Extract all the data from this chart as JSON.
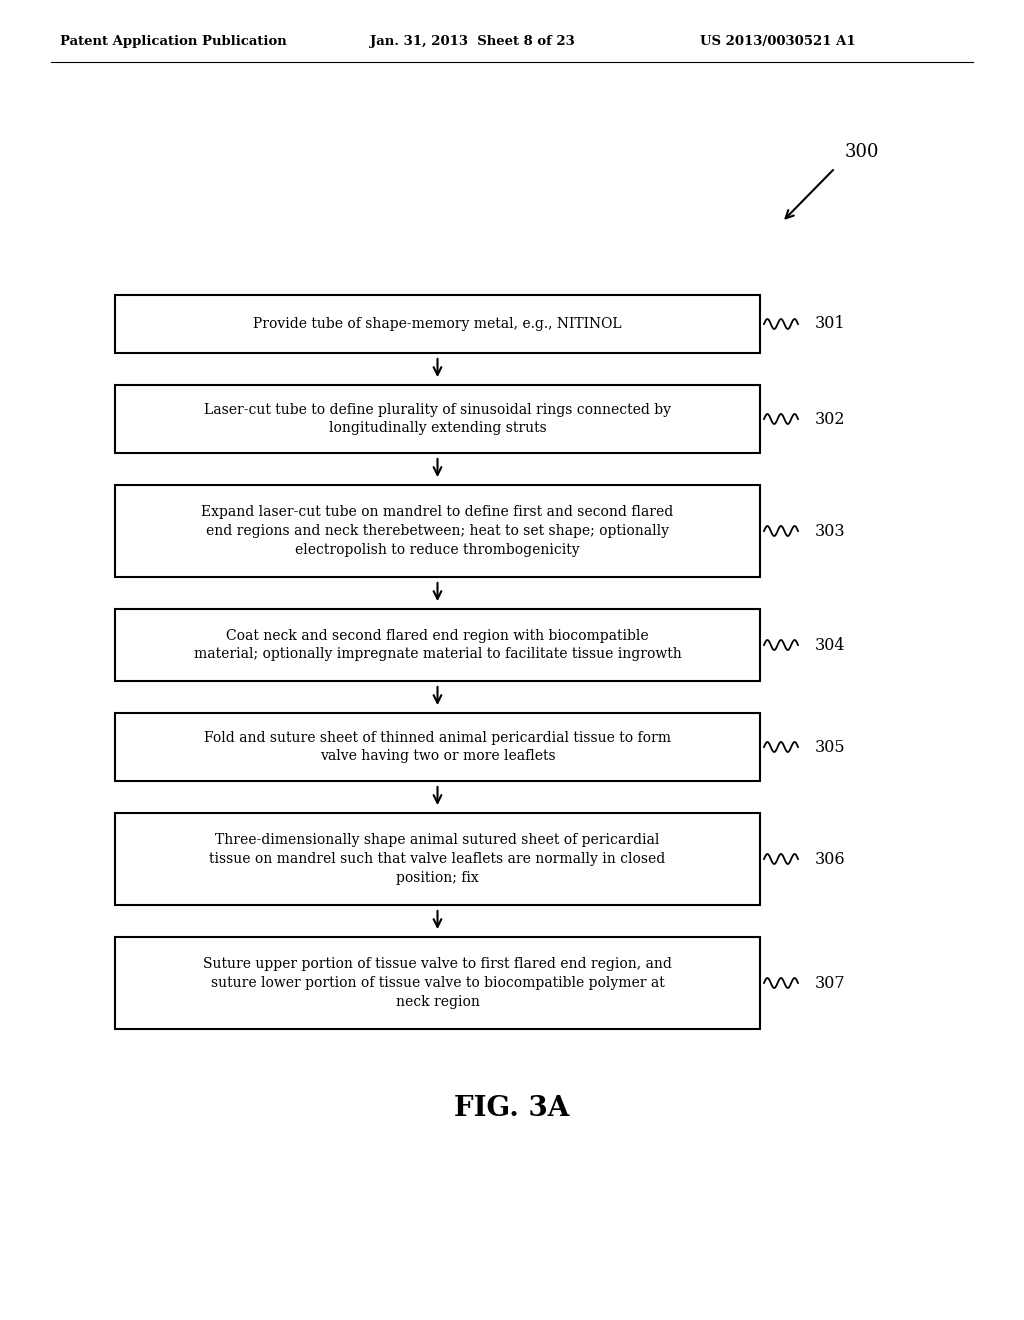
{
  "background_color": "#ffffff",
  "header_left": "Patent Application Publication",
  "header_center": "Jan. 31, 2013  Sheet 8 of 23",
  "header_right": "US 2013/0030521 A1",
  "diagram_label": "300",
  "figure_label": "FIG. 3A",
  "boxes": [
    {
      "id": 301,
      "label": "301",
      "lines": [
        "Provide tube of shape-memory metal, e.g., NITINOL"
      ]
    },
    {
      "id": 302,
      "label": "302",
      "lines": [
        "Laser-cut tube to define plurality of sinusoidal rings connected by",
        "longitudinally extending struts"
      ]
    },
    {
      "id": 303,
      "label": "303",
      "lines": [
        "Expand laser-cut tube on mandrel to define first and second flared",
        "end regions and neck therebetween; heat to set shape; optionally",
        "electropolish to reduce thrombogenicity"
      ]
    },
    {
      "id": 304,
      "label": "304",
      "lines": [
        "Coat neck and second flared end region with biocompatible",
        "material; optionally impregnate material to facilitate tissue ingrowth"
      ]
    },
    {
      "id": 305,
      "label": "305",
      "lines": [
        "Fold and suture sheet of thinned animal pericardial tissue to form",
        "valve having two or more leaflets"
      ]
    },
    {
      "id": 306,
      "label": "306",
      "lines": [
        "Three-dimensionally shape animal sutured sheet of pericardial",
        "tissue on mandrel such that valve leaflets are normally in closed",
        "position; fix"
      ]
    },
    {
      "id": 307,
      "label": "307",
      "lines": [
        "Suture upper portion of tissue valve to first flared end region, and",
        "suture lower portion of tissue valve to biocompatible polymer at",
        "neck region"
      ]
    }
  ]
}
